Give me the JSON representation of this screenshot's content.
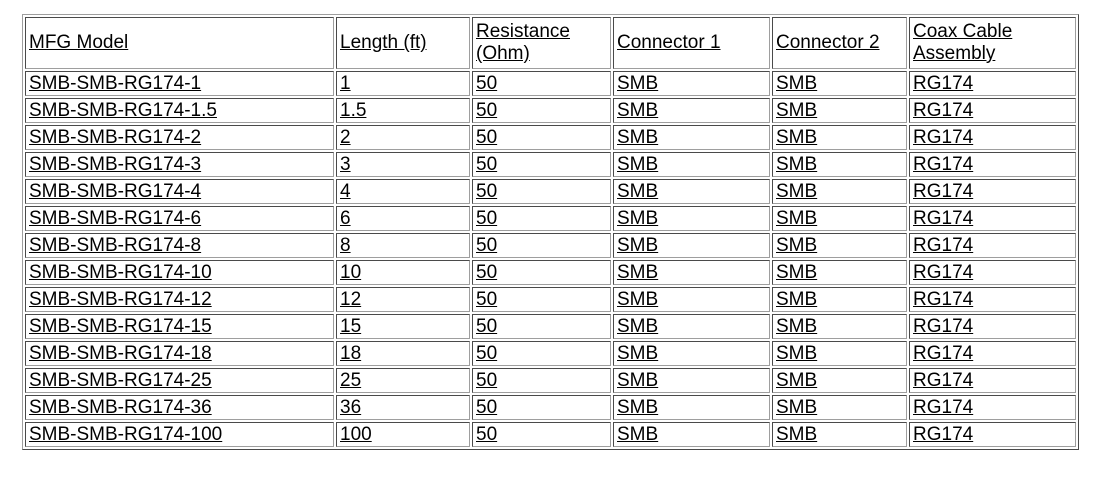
{
  "page": {
    "background": "#ffffff"
  },
  "colors": {
    "text": "#000000",
    "border": "#9e9e9e",
    "table_background": "#ffffff"
  },
  "table": {
    "columns": [
      {
        "key": "model",
        "label": "MFG Model"
      },
      {
        "key": "length",
        "label": "Length (ft)"
      },
      {
        "key": "resistance",
        "label": "Resistance (Ohm)"
      },
      {
        "key": "connector1",
        "label": "Connector 1"
      },
      {
        "key": "connector2",
        "label": "Connector 2"
      },
      {
        "key": "coax",
        "label": "Coax Cable Assembly"
      }
    ],
    "rows": [
      {
        "model": "SMB-SMB-RG174-1",
        "length": "1",
        "resistance": "50",
        "connector1": "SMB",
        "connector2": "SMB",
        "coax": "RG174"
      },
      {
        "model": "SMB-SMB-RG174-1.5",
        "length": "1.5",
        "resistance": "50",
        "connector1": "SMB",
        "connector2": "SMB",
        "coax": "RG174"
      },
      {
        "model": "SMB-SMB-RG174-2",
        "length": "2",
        "resistance": "50",
        "connector1": "SMB",
        "connector2": "SMB",
        "coax": "RG174"
      },
      {
        "model": "SMB-SMB-RG174-3",
        "length": "3",
        "resistance": "50",
        "connector1": "SMB",
        "connector2": "SMB",
        "coax": "RG174"
      },
      {
        "model": "SMB-SMB-RG174-4",
        "length": "4",
        "resistance": "50",
        "connector1": "SMB",
        "connector2": "SMB",
        "coax": "RG174"
      },
      {
        "model": "SMB-SMB-RG174-6",
        "length": "6",
        "resistance": "50",
        "connector1": "SMB",
        "connector2": "SMB",
        "coax": "RG174"
      },
      {
        "model": "SMB-SMB-RG174-8",
        "length": "8",
        "resistance": "50",
        "connector1": "SMB",
        "connector2": "SMB",
        "coax": "RG174"
      },
      {
        "model": "SMB-SMB-RG174-10",
        "length": "10",
        "resistance": "50",
        "connector1": "SMB",
        "connector2": "SMB",
        "coax": "RG174"
      },
      {
        "model": "SMB-SMB-RG174-12",
        "length": "12",
        "resistance": "50",
        "connector1": "SMB",
        "connector2": "SMB",
        "coax": "RG174"
      },
      {
        "model": "SMB-SMB-RG174-15",
        "length": "15",
        "resistance": "50",
        "connector1": "SMB",
        "connector2": "SMB",
        "coax": "RG174"
      },
      {
        "model": "SMB-SMB-RG174-18",
        "length": "18",
        "resistance": "50",
        "connector1": "SMB",
        "connector2": "SMB",
        "coax": "RG174"
      },
      {
        "model": "SMB-SMB-RG174-25",
        "length": "25",
        "resistance": "50",
        "connector1": "SMB",
        "connector2": "SMB",
        "coax": "RG174"
      },
      {
        "model": "SMB-SMB-RG174-36",
        "length": "36",
        "resistance": "50",
        "connector1": "SMB",
        "connector2": "SMB",
        "coax": "RG174"
      },
      {
        "model": "SMB-SMB-RG174-100",
        "length": "100",
        "resistance": "50",
        "connector1": "SMB",
        "connector2": "SMB",
        "coax": "RG174"
      }
    ]
  }
}
